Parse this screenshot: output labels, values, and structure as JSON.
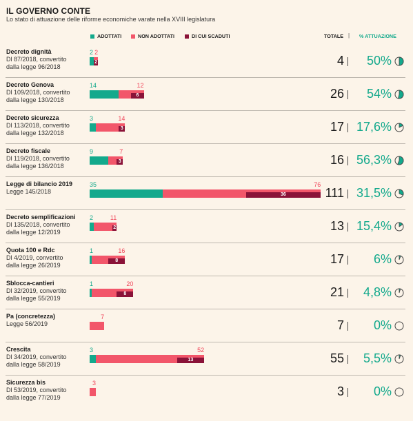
{
  "title": "IL GOVERNO CONTE",
  "subtitle": "Lo stato di attuazione delle riforme economiche varate nella XVIII legislatura",
  "legend": {
    "adottati": "ADOTTATI",
    "non_adottati": "NON ADOTTATI",
    "scaduti": "DI CUI SCADUTI"
  },
  "header": {
    "totale": "TOTALE",
    "sep": "|",
    "attuazione": "% ATTUAZIONE"
  },
  "colors": {
    "adottati": "#13a98c",
    "non_adottati": "#f2566a",
    "scaduti": "#8a1238",
    "background": "#fcf4e9"
  },
  "chart_data": {
    "type": "bar",
    "stacked": true,
    "title": "IL GOVERNO CONTE",
    "subtitle": "Lo stato di attuazione delle riforme economiche varate nella XVIII legislatura",
    "legend": [
      "ADOTTATI",
      "NON ADOTTATI",
      "DI CUI SCADUTI"
    ],
    "rows": [
      {
        "name": "Decreto dignità",
        "sub": "Dl 87/2018, convertito\ndalla legge 96/2018",
        "adottati": 2,
        "non_adottati": 2,
        "scaduti": 2,
        "totale": 4,
        "attuazione": "50%",
        "fraction": 0.5
      },
      {
        "name": "Decreto Genova",
        "sub": "Dl 109/2018, convertito\ndalla legge 130/2018",
        "adottati": 14,
        "non_adottati": 12,
        "scaduti": 6,
        "totale": 26,
        "attuazione": "54%",
        "fraction": 0.54
      },
      {
        "name": "Decreto sicurezza",
        "sub": "Dl 113/2018, convertito\ndalla legge 132/2018",
        "adottati": 3,
        "non_adottati": 14,
        "scaduti": 3,
        "totale": 17,
        "attuazione": "17,6%",
        "fraction": 0.176
      },
      {
        "name": "Decreto fiscale",
        "sub": "Dl 119/2018, convertito\ndalla legge 136/2018",
        "adottati": 9,
        "non_adottati": 7,
        "scaduti": 3,
        "totale": 16,
        "attuazione": "56,3%",
        "fraction": 0.563
      },
      {
        "name": "Legge di bilancio 2019",
        "sub": "Legge 145/2018",
        "adottati": 35,
        "non_adottati": 76,
        "scaduti": 36,
        "totale": 111,
        "attuazione": "31,5%",
        "fraction": 0.315
      },
      {
        "name": "Decreto semplificazioni",
        "sub": "Dl 135/2018, convertito\ndalla legge 12/2019",
        "adottati": 2,
        "non_adottati": 11,
        "scaduti": 2,
        "totale": 13,
        "attuazione": "15,4%",
        "fraction": 0.154
      },
      {
        "name": "Quota 100 e Rdc",
        "sub": "Dl 4/2019, convertito\ndalla legge 26/2019",
        "adottati": 1,
        "non_adottati": 16,
        "scaduti": 8,
        "totale": 17,
        "attuazione": "6%",
        "fraction": 0.06
      },
      {
        "name": "Sblocca-cantieri",
        "sub": "Dl 32/2019, convertito\ndalla legge 55/2019",
        "adottati": 1,
        "non_adottati": 20,
        "scaduti": 8,
        "totale": 21,
        "attuazione": "4,8%",
        "fraction": 0.048
      },
      {
        "name": "Pa (concretezza)",
        "sub": "Legge 56/2019",
        "adottati": 0,
        "non_adottati": 7,
        "scaduti": 0,
        "totale": 7,
        "attuazione": "0%",
        "fraction": 0
      },
      {
        "name": "Crescita",
        "sub": "Dl 34/2019, convertito\ndalla legge 58/2019",
        "adottati": 3,
        "non_adottati": 52,
        "scaduti": 13,
        "totale": 55,
        "attuazione": "5,5%",
        "fraction": 0.055
      },
      {
        "name": "Sicurezza bis",
        "sub": "Dl 53/2019, convertito\ndalla legge 77/2019",
        "adottati": 0,
        "non_adottati": 3,
        "scaduti": 0,
        "totale": 3,
        "attuazione": "0%",
        "fraction": 0
      }
    ]
  }
}
